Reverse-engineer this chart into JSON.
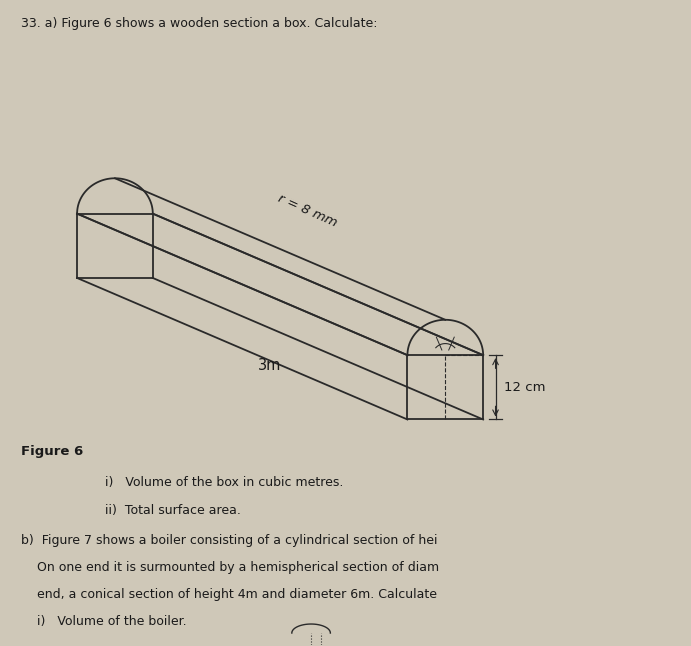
{
  "title_text": "33. a) Figure 6 shows a wooden section a box. Calculate:",
  "figure_label": "Figure 6",
  "r_label": "r = 8 mm",
  "length_label": "3m",
  "height_label": "12 cm",
  "bg_color": "#cfc8b8",
  "text_color": "#1a1a1a",
  "line_color": "#2a2a2a",
  "fig_width": 6.91,
  "fig_height": 6.46,
  "dpi": 100,
  "shape_lw": 1.3
}
